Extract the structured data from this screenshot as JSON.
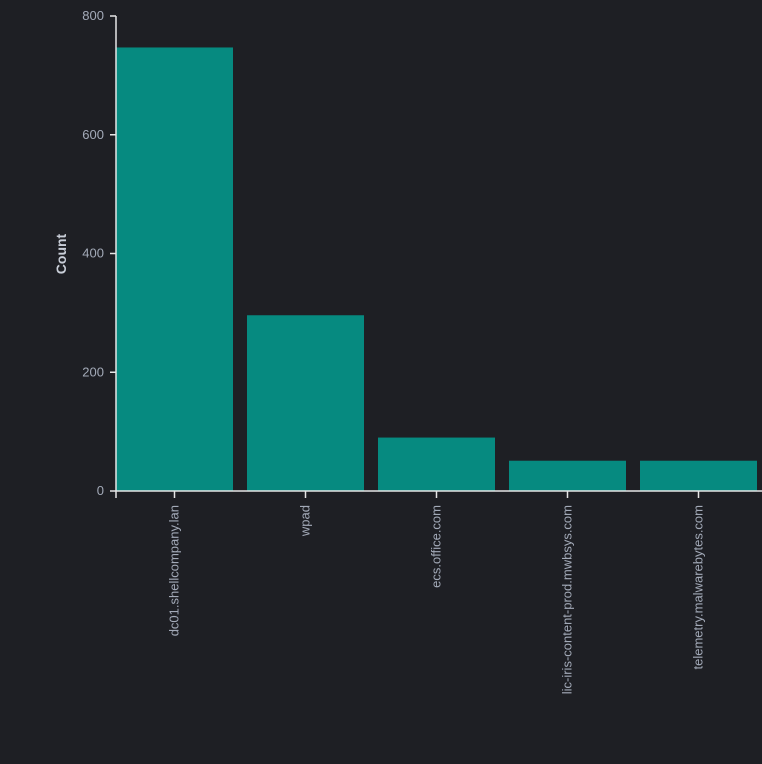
{
  "chart_data": {
    "type": "bar",
    "title": "",
    "xlabel": "",
    "ylabel": "Count",
    "categories": [
      "dc01.shellcompany.lan",
      "wpad",
      "ecs.office.com",
      "lic-iris-content-prod.mwbsys.com",
      "telemetry.malwarebytes.com"
    ],
    "values": [
      747,
      296,
      90,
      51,
      51
    ],
    "ylim": [
      0,
      800
    ],
    "yticks": [
      "0",
      "200",
      "400",
      "600",
      "800"
    ],
    "grid": false,
    "bar_color": "#068a80",
    "background": "#1e1f24"
  }
}
